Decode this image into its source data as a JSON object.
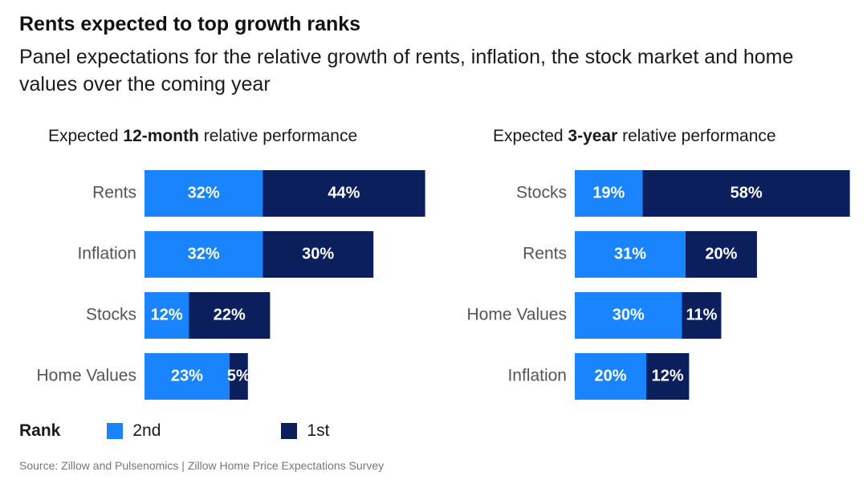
{
  "title": "Rents expected to top growth ranks",
  "subtitle": "Panel expectations for the relative growth of rents, inflation, the stock market and home values over the coming year",
  "colors": {
    "second": "#1a84ff",
    "first": "#0b1f5c",
    "label_text": "#ffffff",
    "category_text": "#555555"
  },
  "legend": {
    "title": "Rank",
    "items": [
      {
        "label": "2nd",
        "color": "#1a84ff"
      },
      {
        "label": "1st",
        "color": "#0b1f5c"
      }
    ]
  },
  "source": "Source: Zillow and Pulsenomics | Zillow Home Price Expectations Survey",
  "chart_data": [
    {
      "type": "bar",
      "stacked": true,
      "orientation": "horizontal",
      "title_parts": {
        "prefix": "Expected ",
        "bold": "12-month",
        "suffix": " relative performance"
      },
      "categories": [
        "Rents",
        "Inflation",
        "Stocks",
        "Home Values"
      ],
      "series": [
        {
          "name": "2nd",
          "values": [
            32,
            32,
            12,
            23
          ]
        },
        {
          "name": "1st",
          "values": [
            44,
            30,
            22,
            5
          ]
        }
      ],
      "unit": "%"
    },
    {
      "type": "bar",
      "stacked": true,
      "orientation": "horizontal",
      "title_parts": {
        "prefix": "Expected ",
        "bold": "3-year",
        "suffix": " relative performance"
      },
      "categories": [
        "Stocks",
        "Rents",
        "Home Values",
        "Inflation"
      ],
      "series": [
        {
          "name": "2nd",
          "values": [
            19,
            31,
            30,
            20
          ]
        },
        {
          "name": "1st",
          "values": [
            58,
            20,
            11,
            12
          ]
        }
      ],
      "unit": "%"
    }
  ]
}
